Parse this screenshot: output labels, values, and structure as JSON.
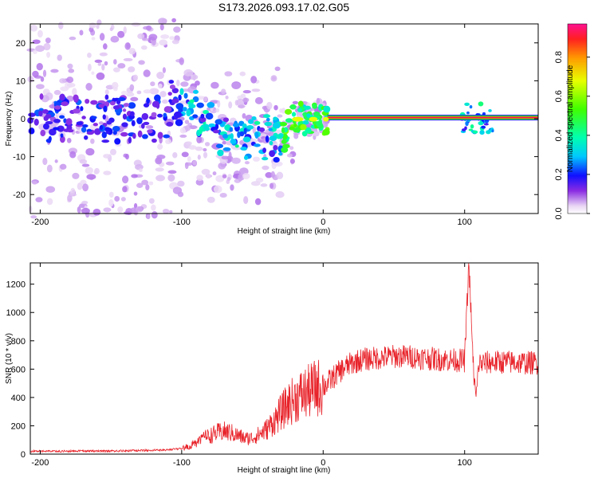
{
  "title": "S173.2026.093.17.02.G05",
  "chart_data": [
    {
      "type": "heatmap",
      "xlabel": "Height of straight line (km)",
      "ylabel": "Frequency (Hz)",
      "xlim": [
        -207,
        152
      ],
      "ylim": [
        -25,
        25
      ],
      "xticks": [
        -200,
        -100,
        0,
        100
      ],
      "yticks": [
        -20,
        -10,
        0,
        10,
        20
      ],
      "colorbar": {
        "label": "Normalized spectral amplitude",
        "ticks": [
          0.0,
          0.2,
          0.4,
          0.6,
          0.8
        ],
        "range": [
          0.0,
          0.97
        ]
      },
      "ridge": {
        "stable_from_km": 3,
        "stable_freq_hz": 0.3,
        "stable_amplitude": 0.95
      }
    },
    {
      "type": "line",
      "xlabel": "Height of straight line (km)",
      "ylabel": "SNR (10 * v/v)",
      "xlim": [
        -207,
        152
      ],
      "ylim": [
        0,
        1350
      ],
      "xticks": [
        -200,
        -100,
        0,
        100
      ],
      "yticks": [
        0,
        200,
        400,
        600,
        800,
        1000,
        1200
      ],
      "color": "#e8232a",
      "series": [
        {
          "name": "SNR",
          "x": [
            -207,
            -190,
            -170,
            -150,
            -130,
            -110,
            -100,
            -95,
            -90,
            -85,
            -80,
            -75,
            -70,
            -65,
            -60,
            -55,
            -50,
            -45,
            -40,
            -35,
            -30,
            -25,
            -20,
            -15,
            -10,
            -5,
            0,
            5,
            10,
            15,
            20,
            25,
            30,
            40,
            50,
            60,
            70,
            80,
            90,
            100,
            103,
            106,
            108,
            110,
            120,
            130,
            140,
            152
          ],
          "y": [
            20,
            20,
            22,
            22,
            25,
            30,
            40,
            55,
            80,
            110,
            130,
            150,
            160,
            150,
            130,
            110,
            115,
            140,
            175,
            230,
            290,
            350,
            390,
            420,
            440,
            470,
            470,
            520,
            570,
            610,
            640,
            660,
            670,
            680,
            690,
            690,
            680,
            670,
            665,
            660,
            1350,
            640,
            380,
            640,
            650,
            650,
            645,
            645
          ]
        }
      ]
    }
  ]
}
